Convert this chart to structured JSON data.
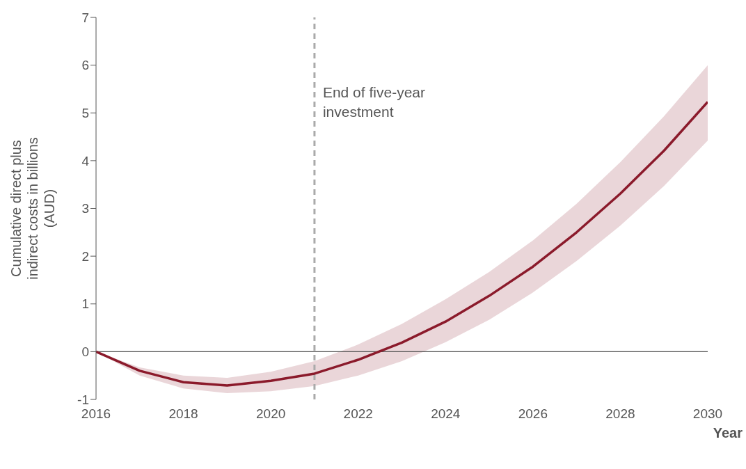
{
  "chart_data": {
    "type": "line",
    "xlabel": "Year",
    "ylabel": "Cumulative direct plus indirect costs in billions (AUD)",
    "x": [
      2016,
      2017,
      2018,
      2019,
      2020,
      2021,
      2022,
      2023,
      2024,
      2025,
      2026,
      2027,
      2028,
      2029,
      2030
    ],
    "series": [
      {
        "color": "#8b1a2b",
        "values": [
          0,
          -0.4,
          -0.64,
          -0.71,
          -0.61,
          -0.46,
          -0.17,
          0.19,
          0.63,
          1.17,
          1.78,
          2.5,
          3.31,
          4.21,
          5.23
        ],
        "lower": [
          0,
          -0.5,
          -0.77,
          -0.87,
          -0.83,
          -0.72,
          -0.5,
          -0.2,
          0.2,
          0.67,
          1.24,
          1.9,
          2.64,
          3.47,
          4.42
        ],
        "upper": [
          0,
          -0.33,
          -0.5,
          -0.55,
          -0.42,
          -0.2,
          0.15,
          0.58,
          1.1,
          1.67,
          2.33,
          3.1,
          3.97,
          4.93,
          6.0
        ]
      }
    ],
    "xlim": [
      2016,
      2030
    ],
    "xticks": [
      2016,
      2018,
      2020,
      2022,
      2024,
      2026,
      2028,
      2030
    ],
    "ylim": [
      -1,
      7
    ],
    "yticks": [
      -1,
      0,
      1,
      2,
      3,
      4,
      5,
      6,
      7
    ],
    "ref_lines": [
      {
        "axis": "x",
        "value": 2021,
        "label": "End of five-year investment",
        "color": "#aaaaaa",
        "line_style": "dashed"
      },
      {
        "axis": "y",
        "value": 0,
        "label": null,
        "color": "#555555",
        "line_style": "solid"
      }
    ],
    "grid": false,
    "legend": false,
    "marker": "none",
    "line_style": "solid"
  }
}
